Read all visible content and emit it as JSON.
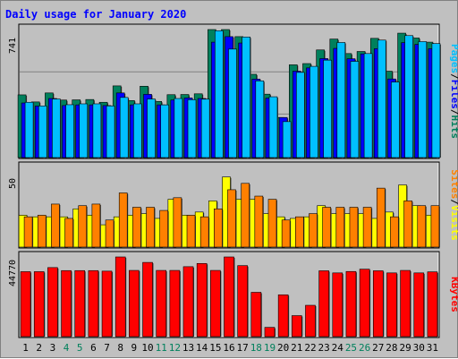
{
  "chart_data": {
    "title": "Daily usage for January 2020",
    "type": "bar",
    "colors": {
      "hits": "#00805c",
      "files": "#0000ff",
      "pages": "#00c0ff",
      "visits": "#ffff00",
      "sites": "#ff8000",
      "kbytes": "#ff0000",
      "background": "#c0c0c0",
      "title": "#0000ff",
      "weekend_day": "#00805c",
      "weekday": "#000000"
    },
    "categories": [
      "1",
      "2",
      "3",
      "4",
      "5",
      "6",
      "7",
      "8",
      "9",
      "10",
      "11",
      "12",
      "13",
      "14",
      "15",
      "16",
      "17",
      "18",
      "19",
      "20",
      "21",
      "22",
      "23",
      "24",
      "25",
      "26",
      "27",
      "28",
      "29",
      "30",
      "31"
    ],
    "weekend_days": [
      "4",
      "5",
      "11",
      "12",
      "18",
      "19",
      "25",
      "26"
    ],
    "panels": [
      {
        "id": "hits_files_pages",
        "ymax_label": "741",
        "ymax": 741,
        "side_label": [
          "Pages",
          "/",
          "Files",
          "/",
          "Hits"
        ],
        "side_label_colors": [
          "#00c0ff",
          "#000000",
          "#0000ff",
          "#000000",
          "#00805c"
        ],
        "series": [
          {
            "name": "Hits",
            "values": [
              363,
              322,
              374,
              333,
              334,
              336,
              320,
              415,
              330,
              413,
              325,
              364,
              365,
              369,
              745,
              755,
              700,
              482,
              367,
              232,
              537,
              544,
              623,
              686,
              602,
              614,
              690,
              500,
              720,
              692,
              668
            ]
          },
          {
            "name": "Files",
            "values": [
              316,
              298,
              342,
              301,
              305,
              305,
              301,
              374,
              305,
              366,
              305,
              333,
              345,
              342,
              668,
              700,
              663,
              454,
              344,
              232,
              500,
              519,
              573,
              632,
              572,
              600,
              630,
              455,
              665,
              655,
              630
            ]
          },
          {
            "name": "Pages",
            "values": [
              320,
              299,
              339,
              306,
              311,
              311,
              299,
              348,
              311,
              339,
              305,
              342,
              335,
              338,
              734,
              628,
              698,
              444,
              352,
              208,
              493,
              528,
              564,
              666,
              557,
              602,
              680,
              437,
              706,
              671,
              660
            ]
          }
        ]
      },
      {
        "id": "visits_sites",
        "ymax_label": "50",
        "ymax": 50,
        "side_label": [
          "Sites",
          "/",
          "Visits"
        ],
        "side_label_colors": [
          "#ff8000",
          "#000000",
          "#ffff00"
        ],
        "series": [
          {
            "name": "Visits",
            "values": [
              20,
              19,
              19,
              19,
              24,
              20,
              14,
              19,
              20,
              21,
              18,
              30,
              20,
              22,
              29,
              44,
              30,
              30,
              21,
              19,
              18,
              19,
              26,
              21,
              21,
              21,
              18,
              22,
              39,
              26,
              20
            ]
          },
          {
            "name": "Sites",
            "values": [
              19,
              20,
              27,
              18,
              26,
              27,
              17,
              34,
              25,
              25,
              23,
              31,
              20,
              19,
              24,
              36,
              40,
              32,
              30,
              17,
              19,
              21,
              25,
              25,
              25,
              25,
              37,
              19,
              29,
              26,
              26
            ]
          }
        ]
      },
      {
        "id": "kbytes",
        "ymax_label": "44770",
        "ymax": 44770,
        "side_label": [
          "KBytes"
        ],
        "side_label_colors": [
          "#ff0000"
        ],
        "series": [
          {
            "name": "KBytes",
            "values": [
              36500,
              36500,
              38800,
              37100,
              37100,
              37100,
              36800,
              47200,
              37200,
              41700,
              37200,
              37200,
              39300,
              41100,
              37200,
              49700,
              39900,
              24900,
              5200,
              23500,
              11800,
              17600,
              37000,
              35800,
              36600,
              37900,
              37000,
              35800,
              37200,
              35800,
              36400
            ]
          }
        ]
      }
    ]
  }
}
